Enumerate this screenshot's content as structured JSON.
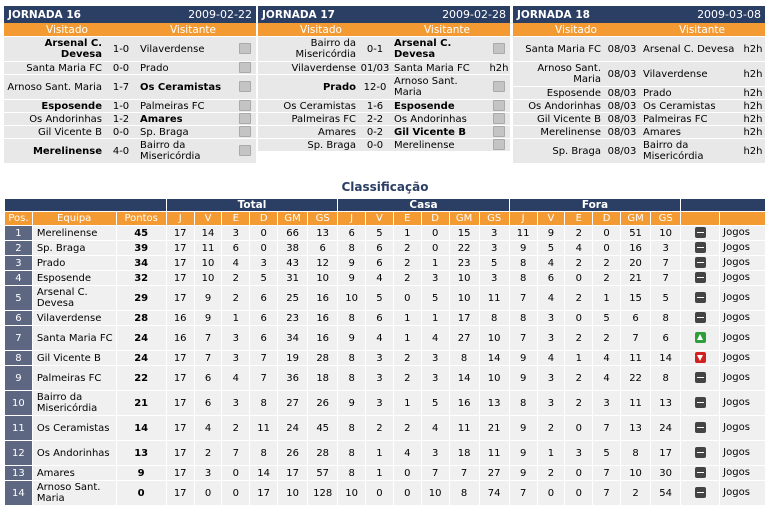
{
  "colors": {
    "navy": "#2b3e63",
    "orange": "#f39a33",
    "row": "#e8e8e8",
    "pos": "#5e6782"
  },
  "labels": {
    "visitado": "Visitado",
    "visitante": "Visitante"
  },
  "jornadas": [
    {
      "title": "JORNADA 16",
      "date": "2009-02-22",
      "tv_icon": "tv-icon",
      "games": [
        {
          "home": "Arsenal C. Devesa",
          "score": "1-0",
          "away": "Vilaverdense",
          "tall": true,
          "winner": "home"
        },
        {
          "home": "Santa Maria FC",
          "score": "0-0",
          "away": "Prado",
          "tall": false,
          "winner": ""
        },
        {
          "home": "Arnoso Sant. Maria",
          "score": "1-7",
          "away": "Os Ceramistas",
          "tall": true,
          "winner": "away"
        },
        {
          "home": "Esposende",
          "score": "1-0",
          "away": "Palmeiras FC",
          "tall": false,
          "winner": "home"
        },
        {
          "home": "Os Andorinhas",
          "score": "1-2",
          "away": "Amares",
          "tall": false,
          "winner": "away"
        },
        {
          "home": "Gil Vicente B",
          "score": "0-0",
          "away": "Sp. Braga",
          "tall": false,
          "winner": ""
        },
        {
          "home": "Merelinense",
          "score": "4-0",
          "away": "Bairro da Misericórdia",
          "tall": true,
          "winner": "home"
        }
      ]
    },
    {
      "title": "JORNADA 17",
      "date": "2009-02-28",
      "tv_icon": "tv-icon",
      "games": [
        {
          "home": "Bairro da Misericórdia",
          "score": "0-1",
          "away": "Arsenal C. Devesa",
          "tall": true,
          "winner": "away"
        },
        {
          "home": "Vilaverdense",
          "score": "01/03",
          "away": "Santa Maria FC",
          "time": "h2h",
          "tall": false,
          "winner": ""
        },
        {
          "home": "Prado",
          "score": "12-0",
          "away": "Arnoso Sant. Maria",
          "tall": true,
          "winner": "home"
        },
        {
          "home": "Os Ceramistas",
          "score": "1-6",
          "away": "Esposende",
          "tall": false,
          "winner": "away"
        },
        {
          "home": "Palmeiras FC",
          "score": "2-2",
          "away": "Os Andorinhas",
          "tall": false,
          "winner": ""
        },
        {
          "home": "Amares",
          "score": "0-2",
          "away": "Gil Vicente B",
          "tall": false,
          "winner": "away"
        },
        {
          "home": "Sp. Braga",
          "score": "0-0",
          "away": "Merelinense",
          "tall": false,
          "winner": ""
        }
      ]
    },
    {
      "title": "JORNADA 18",
      "date": "2009-03-08",
      "games": [
        {
          "home": "Santa Maria FC",
          "score": "08/03",
          "away": "Arsenal C. Devesa",
          "time": "h2h",
          "tall": true,
          "winner": ""
        },
        {
          "home": "Arnoso Sant. Maria",
          "score": "08/03",
          "away": "Vilaverdense",
          "time": "h2h",
          "tall": true,
          "winner": ""
        },
        {
          "home": "Esposende",
          "score": "08/03",
          "away": "Prado",
          "time": "h2h",
          "tall": false,
          "winner": ""
        },
        {
          "home": "Os Andorinhas",
          "score": "08/03",
          "away": "Os Ceramistas",
          "time": "h2h",
          "tall": false,
          "winner": ""
        },
        {
          "home": "Gil Vicente B",
          "score": "08/03",
          "away": "Palmeiras FC",
          "time": "h2h",
          "tall": false,
          "winner": ""
        },
        {
          "home": "Merelinense",
          "score": "08/03",
          "away": "Amares",
          "time": "h2h",
          "tall": false,
          "winner": ""
        },
        {
          "home": "Sp. Braga",
          "score": "08/03",
          "away": "Bairro da Misericórdia",
          "time": "h2h",
          "tall": true,
          "winner": ""
        }
      ]
    }
  ],
  "classificacao": {
    "title": "Classificação",
    "groups": {
      "total": "Total",
      "casa": "Casa",
      "fora": "Fora"
    },
    "headers": [
      "Pos.",
      "Equipa",
      "Pontos",
      "J",
      "V",
      "E",
      "D",
      "GM",
      "GS",
      "J",
      "V",
      "E",
      "D",
      "GM",
      "GS",
      "J",
      "V",
      "E",
      "D",
      "GM",
      "GS"
    ],
    "jogos_label": "Jogos",
    "rows": [
      {
        "pos": "1",
        "team": "Merelinense",
        "pts": "45",
        "total": [
          "17",
          "14",
          "3",
          "0",
          "66",
          "13"
        ],
        "casa": [
          "6",
          "5",
          "1",
          "0",
          "15",
          "3"
        ],
        "fora": [
          "11",
          "9",
          "2",
          "0",
          "51",
          "10"
        ],
        "trend": "equal",
        "tall": false
      },
      {
        "pos": "2",
        "team": "Sp. Braga",
        "pts": "39",
        "total": [
          "17",
          "11",
          "6",
          "0",
          "38",
          "6"
        ],
        "casa": [
          "8",
          "6",
          "2",
          "0",
          "22",
          "3"
        ],
        "fora": [
          "9",
          "5",
          "4",
          "0",
          "16",
          "3"
        ],
        "trend": "equal",
        "tall": false
      },
      {
        "pos": "3",
        "team": "Prado",
        "pts": "34",
        "total": [
          "17",
          "10",
          "4",
          "3",
          "43",
          "12"
        ],
        "casa": [
          "9",
          "6",
          "2",
          "1",
          "23",
          "5"
        ],
        "fora": [
          "8",
          "4",
          "2",
          "2",
          "20",
          "7"
        ],
        "trend": "equal",
        "tall": false
      },
      {
        "pos": "4",
        "team": "Esposende",
        "pts": "32",
        "total": [
          "17",
          "10",
          "2",
          "5",
          "31",
          "10"
        ],
        "casa": [
          "9",
          "4",
          "2",
          "3",
          "10",
          "3"
        ],
        "fora": [
          "8",
          "6",
          "0",
          "2",
          "21",
          "7"
        ],
        "trend": "equal",
        "tall": false
      },
      {
        "pos": "5",
        "team": "Arsenal C. Devesa",
        "pts": "29",
        "total": [
          "17",
          "9",
          "2",
          "6",
          "25",
          "16"
        ],
        "casa": [
          "10",
          "5",
          "0",
          "5",
          "10",
          "11"
        ],
        "fora": [
          "7",
          "4",
          "2",
          "1",
          "15",
          "5"
        ],
        "trend": "equal",
        "tall": true
      },
      {
        "pos": "6",
        "team": "Vilaverdense",
        "pts": "28",
        "total": [
          "16",
          "9",
          "1",
          "6",
          "23",
          "16"
        ],
        "casa": [
          "8",
          "6",
          "1",
          "1",
          "17",
          "8"
        ],
        "fora": [
          "8",
          "3",
          "0",
          "5",
          "6",
          "8"
        ],
        "trend": "equal",
        "tall": false
      },
      {
        "pos": "7",
        "team": "Santa Maria FC",
        "pts": "24",
        "total": [
          "16",
          "7",
          "3",
          "6",
          "34",
          "16"
        ],
        "casa": [
          "9",
          "4",
          "1",
          "4",
          "27",
          "10"
        ],
        "fora": [
          "7",
          "3",
          "2",
          "2",
          "7",
          "6"
        ],
        "trend": "up",
        "tall": true
      },
      {
        "pos": "8",
        "team": "Gil Vicente B",
        "pts": "24",
        "total": [
          "17",
          "7",
          "3",
          "7",
          "19",
          "28"
        ],
        "casa": [
          "8",
          "3",
          "2",
          "3",
          "8",
          "14"
        ],
        "fora": [
          "9",
          "4",
          "1",
          "4",
          "11",
          "14"
        ],
        "trend": "down",
        "tall": false
      },
      {
        "pos": "9",
        "team": "Palmeiras FC",
        "pts": "22",
        "total": [
          "17",
          "6",
          "4",
          "7",
          "36",
          "18"
        ],
        "casa": [
          "8",
          "3",
          "2",
          "3",
          "14",
          "10"
        ],
        "fora": [
          "9",
          "3",
          "2",
          "4",
          "22",
          "8"
        ],
        "trend": "equal",
        "tall": true
      },
      {
        "pos": "10",
        "team": "Bairro da Misericórdia",
        "pts": "21",
        "total": [
          "17",
          "6",
          "3",
          "8",
          "27",
          "26"
        ],
        "casa": [
          "9",
          "3",
          "1",
          "5",
          "16",
          "13"
        ],
        "fora": [
          "8",
          "3",
          "2",
          "3",
          "11",
          "13"
        ],
        "trend": "equal",
        "tall": true
      },
      {
        "pos": "11",
        "team": "Os Ceramistas",
        "pts": "14",
        "total": [
          "17",
          "4",
          "2",
          "11",
          "24",
          "45"
        ],
        "casa": [
          "8",
          "2",
          "2",
          "4",
          "11",
          "21"
        ],
        "fora": [
          "9",
          "2",
          "0",
          "7",
          "13",
          "24"
        ],
        "trend": "equal",
        "tall": true
      },
      {
        "pos": "12",
        "team": "Os Andorinhas",
        "pts": "13",
        "total": [
          "17",
          "2",
          "7",
          "8",
          "26",
          "28"
        ],
        "casa": [
          "8",
          "1",
          "4",
          "3",
          "18",
          "11"
        ],
        "fora": [
          "9",
          "1",
          "3",
          "5",
          "8",
          "17"
        ],
        "trend": "equal",
        "tall": true
      },
      {
        "pos": "13",
        "team": "Amares",
        "pts": "9",
        "total": [
          "17",
          "3",
          "0",
          "14",
          "17",
          "57"
        ],
        "casa": [
          "8",
          "1",
          "0",
          "7",
          "7",
          "27"
        ],
        "fora": [
          "9",
          "2",
          "0",
          "7",
          "10",
          "30"
        ],
        "trend": "equal",
        "tall": false
      },
      {
        "pos": "14",
        "team": "Arnoso Sant. Maria",
        "pts": "0",
        "total": [
          "17",
          "0",
          "0",
          "17",
          "10",
          "128"
        ],
        "casa": [
          "10",
          "0",
          "0",
          "10",
          "8",
          "74"
        ],
        "fora": [
          "7",
          "0",
          "0",
          "7",
          "2",
          "54"
        ],
        "trend": "equal",
        "tall": true
      }
    ]
  }
}
